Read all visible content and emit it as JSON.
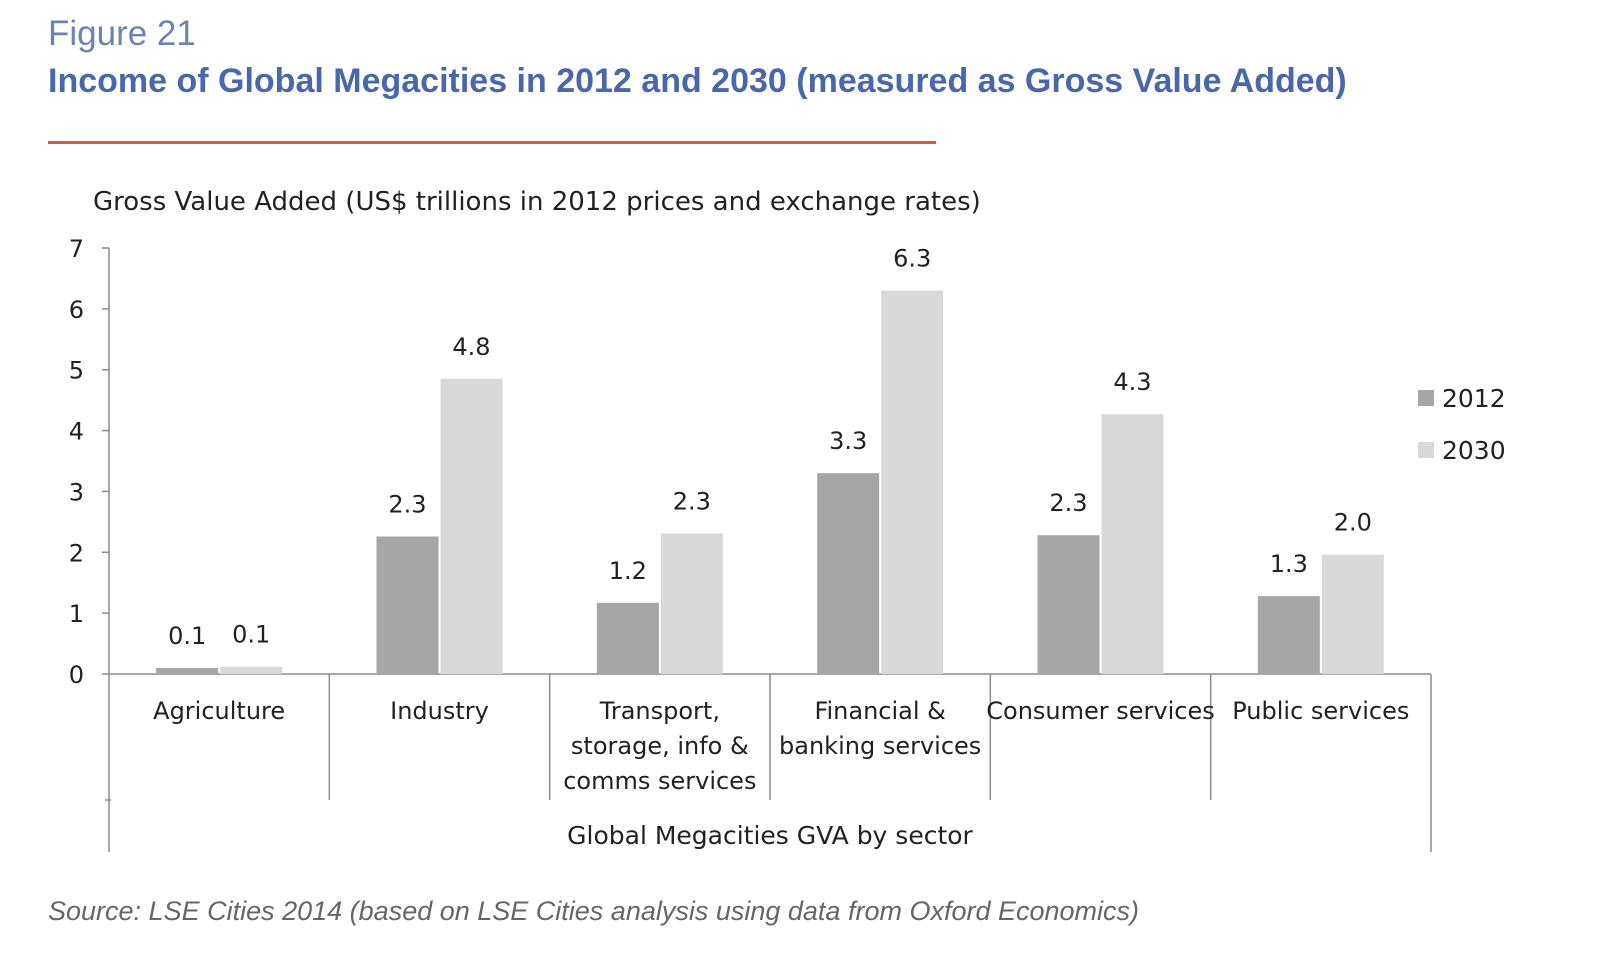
{
  "figure": {
    "label": "Figure 21",
    "title": "Income of Global Megacities in 2012 and 2030 (measured as Gross Value Added)",
    "source": "Source: LSE Cities 2014 (based on LSE Cities analysis using data from Oxford Economics)"
  },
  "colors": {
    "label": "#6b82b8",
    "title": "#4a66ad",
    "rule": "#e0573a",
    "series_2012": "#a6a6a6",
    "series_2030": "#d9d9d9",
    "axis": "#8c8c8c",
    "text": "#222222"
  },
  "chart_data": {
    "type": "bar",
    "ylabel": "Gross Value Added (US$ trillions in 2012 prices and exchange rates)",
    "xlabel": "Global Megacities GVA by sector",
    "ylim": [
      0,
      7
    ],
    "yticks": [
      "0",
      "1",
      "2",
      "3",
      "4",
      "5",
      "6",
      "7"
    ],
    "grid": false,
    "legend_position": "right",
    "categories": [
      [
        "Agriculture"
      ],
      [
        "Industry"
      ],
      [
        "Transport,",
        "storage, info &",
        "comms services"
      ],
      [
        "Financial &",
        "banking services"
      ],
      [
        "Consumer services"
      ],
      [
        "Public services"
      ]
    ],
    "series": [
      {
        "name": "2012",
        "values": [
          0.1,
          2.26,
          1.17,
          3.3,
          2.28,
          1.28
        ],
        "labels": [
          "0.1",
          "2.3",
          "1.2",
          "3.3",
          "2.3",
          "1.3"
        ]
      },
      {
        "name": "2030",
        "values": [
          0.12,
          4.85,
          2.31,
          6.3,
          4.27,
          1.96
        ],
        "labels": [
          "0.1",
          "4.8",
          "2.3",
          "6.3",
          "4.3",
          "2.0"
        ]
      }
    ]
  }
}
